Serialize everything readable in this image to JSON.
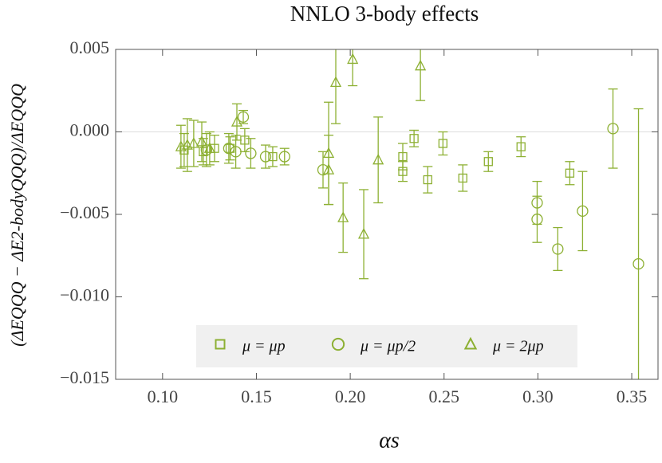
{
  "chart_data": {
    "type": "scatter",
    "title": "NNLO 3-body effects",
    "x_label": "αs",
    "y_label": "(ΔEQQQ − ΔE2-bodyQQQ)/ΔEQQQ",
    "xlim": [
      0.075,
      0.364
    ],
    "ylim": [
      -0.015,
      0.005
    ],
    "xticks": [
      {
        "value": 0.1,
        "label": "0.10"
      },
      0.15,
      {
        "value": 0.2,
        "label": "0.20"
      },
      0.25,
      {
        "value": 0.3,
        "label": "0.30"
      },
      0.35
    ],
    "yticks": [
      0.005,
      {
        "value": 0,
        "label": "0.000"
      },
      {
        "value": -0.005,
        "label": "−0.005"
      },
      {
        "value": -0.01,
        "label": "−0.010"
      },
      {
        "value": -0.015,
        "label": "−0.015"
      }
    ],
    "zero_line": true,
    "legend": "bottom",
    "series": [
      {
        "name": "μ = μp",
        "marker": "square",
        "color": "#8db033",
        "x": [
          0.1115,
          0.1217,
          0.1277,
          0.136,
          0.1438,
          0.1587,
          0.228,
          0.228,
          0.234,
          0.2413,
          0.2494,
          0.26,
          0.2736,
          0.291,
          0.317
        ],
        "values": [
          -0.0011,
          -0.0012,
          -0.001,
          -0.001,
          -0.0005,
          -0.0015,
          -0.0024,
          -0.0015,
          -0.0004,
          -0.0029,
          -0.0007,
          -0.0028,
          -0.0018,
          -0.0009,
          -0.0025
        ],
        "errors": [
          0.001,
          0.0008,
          0.0008,
          0.0007,
          0.0007,
          0.0006,
          0.0006,
          0.0008,
          0.0005,
          0.0008,
          0.0007,
          0.0008,
          0.0006,
          0.0006,
          0.0007
        ]
      },
      {
        "name": "μ = μp/2",
        "marker": "circle",
        "color": "#8db033",
        "x": [
          0.1234,
          0.1353,
          0.139,
          0.143,
          0.147,
          0.1549,
          0.165,
          0.1855,
          0.2996,
          0.2996,
          0.3106,
          0.3238,
          0.34,
          0.3536
        ],
        "values": [
          -0.0011,
          -0.001,
          -0.0012,
          0.0009,
          -0.0013,
          -0.0015,
          -0.0015,
          -0.0023,
          -0.0053,
          -0.0043,
          -0.0071,
          -0.0048,
          0.0002,
          -0.008
        ],
        "errors": [
          0.001,
          0.0009,
          0.001,
          0.0004,
          0.0009,
          0.0007,
          0.0005,
          0.0011,
          0.0014,
          0.0013,
          0.0013,
          0.0024,
          0.0024,
          0.0094
        ]
      },
      {
        "name": "μ = 2μp",
        "marker": "triangle",
        "color": "#8db033",
        "x": [
          0.1098,
          0.1132,
          0.1166,
          0.1209,
          0.1251,
          0.1396,
          0.1885,
          0.1885,
          0.1923,
          0.1962,
          0.2013,
          0.2072,
          0.2149,
          0.2374
        ],
        "values": [
          -0.0009,
          -0.0008,
          -0.0007,
          -0.0006,
          -0.001,
          0.0006,
          -0.0013,
          -0.0023,
          0.003,
          -0.0052,
          0.0044,
          -0.0062,
          -0.0017,
          0.004
        ],
        "errors": [
          0.0013,
          0.0016,
          0.0014,
          0.0012,
          0.001,
          0.0011,
          0.0031,
          0.0021,
          0.0025,
          0.0021,
          0.0016,
          0.0027,
          0.0026,
          0.0021
        ]
      }
    ]
  }
}
